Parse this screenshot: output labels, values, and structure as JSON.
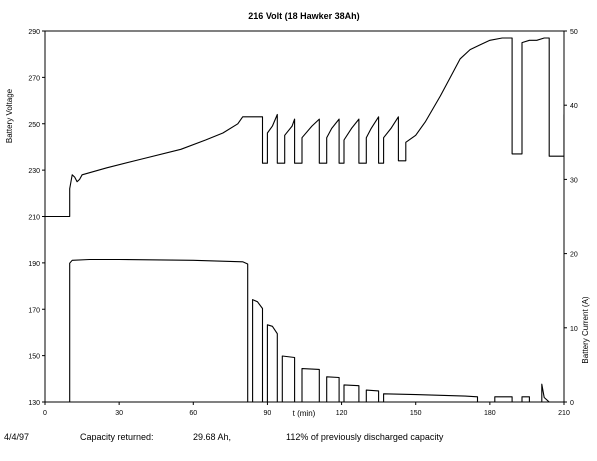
{
  "chart_data": {
    "type": "line",
    "title": "216 Volt (18 Hawker 38Ah)",
    "xlabel": "t (min)",
    "ylabel_left": "Battery Voltage",
    "ylabel_right": "Battery Current (A)",
    "xlim": [
      0,
      210
    ],
    "x_ticks": [
      "0",
      "30",
      "60",
      "90",
      "120",
      "150",
      "180",
      "210"
    ],
    "left_ylim": [
      130,
      290
    ],
    "left_ticks": [
      "130",
      "150",
      "170",
      "190",
      "210",
      "230",
      "250",
      "270",
      "290"
    ],
    "right_ylim": [
      0,
      50
    ],
    "right_ticks": [
      "0",
      "10",
      "20",
      "30",
      "40",
      "50"
    ],
    "grid": false,
    "series": [
      {
        "axis": "left",
        "points": [
          [
            0,
            210
          ],
          [
            10,
            210
          ],
          [
            10,
            222
          ],
          [
            11,
            228
          ],
          [
            12,
            227
          ],
          [
            13,
            225
          ],
          [
            14,
            226
          ],
          [
            15,
            228
          ],
          [
            25,
            231
          ],
          [
            40,
            235
          ],
          [
            55,
            239
          ],
          [
            65,
            243
          ],
          [
            72,
            246
          ],
          [
            78,
            250
          ],
          [
            80,
            253
          ],
          [
            88,
            253
          ],
          [
            88,
            233
          ],
          [
            90,
            233
          ],
          [
            90,
            246
          ],
          [
            92,
            249
          ],
          [
            94,
            254
          ],
          [
            94,
            233
          ],
          [
            97,
            233
          ],
          [
            97,
            245
          ],
          [
            100,
            249
          ],
          [
            101,
            252
          ],
          [
            101,
            233
          ],
          [
            104,
            233
          ],
          [
            104,
            244
          ],
          [
            108,
            249
          ],
          [
            111,
            252
          ],
          [
            111,
            233
          ],
          [
            114,
            233
          ],
          [
            114,
            244
          ],
          [
            116,
            248
          ],
          [
            119,
            252
          ],
          [
            119,
            233
          ],
          [
            121,
            233
          ],
          [
            121,
            243
          ],
          [
            124,
            248
          ],
          [
            127,
            252
          ],
          [
            127,
            233
          ],
          [
            130,
            233
          ],
          [
            130,
            244
          ],
          [
            132,
            248
          ],
          [
            135,
            253
          ],
          [
            135,
            233
          ],
          [
            137,
            233
          ],
          [
            137,
            244
          ],
          [
            140,
            248
          ],
          [
            143,
            253
          ],
          [
            143,
            234
          ],
          [
            146,
            234
          ],
          [
            146,
            242
          ],
          [
            150,
            245
          ],
          [
            154,
            251
          ],
          [
            160,
            262
          ],
          [
            164,
            270
          ],
          [
            168,
            278
          ],
          [
            172,
            282
          ],
          [
            176,
            284
          ],
          [
            180,
            286
          ],
          [
            185,
            287
          ],
          [
            189,
            287
          ],
          [
            189,
            237
          ],
          [
            193,
            237
          ],
          [
            193,
            285
          ],
          [
            196,
            286
          ],
          [
            199,
            286
          ],
          [
            202,
            287
          ],
          [
            204,
            287
          ],
          [
            204,
            236
          ],
          [
            210,
            236
          ],
          [
            210,
            254
          ],
          [
            211,
            238
          ],
          [
            213,
            236
          ],
          [
            216,
            235
          ]
        ]
      },
      {
        "axis": "right",
        "points": [
          [
            0,
            0
          ],
          [
            10,
            0
          ],
          [
            10,
            18.7
          ],
          [
            11,
            19.1
          ],
          [
            18,
            19.2
          ],
          [
            30,
            19.2
          ],
          [
            60,
            19.1
          ],
          [
            80,
            18.9
          ],
          [
            82,
            18.6
          ],
          [
            82,
            0
          ],
          [
            84,
            0
          ],
          [
            84,
            13.8
          ],
          [
            86,
            13.5
          ],
          [
            88,
            12.6
          ],
          [
            88,
            0
          ],
          [
            90,
            0
          ],
          [
            90,
            10.4
          ],
          [
            92,
            10.2
          ],
          [
            94,
            9.2
          ],
          [
            94,
            0
          ],
          [
            96,
            0
          ],
          [
            96,
            6.2
          ],
          [
            101,
            6.0
          ],
          [
            101,
            0
          ],
          [
            104,
            0
          ],
          [
            104,
            4.5
          ],
          [
            111,
            4.4
          ],
          [
            111,
            0
          ],
          [
            114,
            0
          ],
          [
            114,
            3.4
          ],
          [
            119,
            3.3
          ],
          [
            119,
            0
          ],
          [
            121,
            0
          ],
          [
            121,
            2.3
          ],
          [
            127,
            2.2
          ],
          [
            127,
            0
          ],
          [
            130,
            0
          ],
          [
            130,
            1.6
          ],
          [
            135,
            1.5
          ],
          [
            135,
            0
          ],
          [
            137,
            0
          ],
          [
            137,
            1.1
          ],
          [
            150,
            1.0
          ],
          [
            160,
            0.9
          ],
          [
            170,
            0.8
          ],
          [
            175,
            0.7
          ],
          [
            175,
            0
          ],
          [
            182,
            0
          ],
          [
            182,
            0.7
          ],
          [
            189,
            0.7
          ],
          [
            189,
            0
          ],
          [
            193,
            0
          ],
          [
            193,
            0.7
          ],
          [
            196,
            0.7
          ],
          [
            196,
            0
          ],
          [
            201,
            0
          ],
          [
            201,
            2.4
          ],
          [
            202,
            0.6
          ],
          [
            204,
            0
          ],
          [
            216,
            0
          ]
        ]
      }
    ]
  },
  "footer": {
    "date": "4/4/97",
    "capacity_label": "Capacity returned:",
    "capacity_value": "29.68 Ah,",
    "percent_text": "112% of previously discharged capacity"
  }
}
